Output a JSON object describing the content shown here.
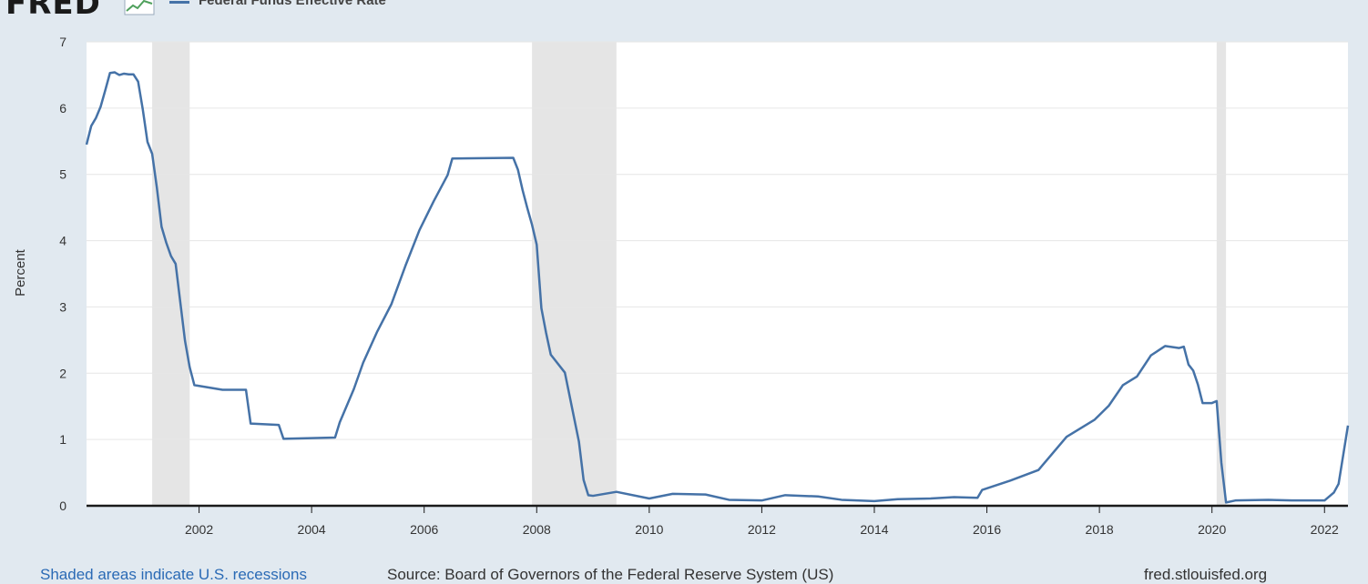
{
  "header": {
    "logo_text": "FRED",
    "logo_icon": "line-chart-icon",
    "legend_label": "Federal Funds Effective Rate"
  },
  "footer": {
    "recession_note": "Shaded areas indicate U.S. recessions",
    "source_note": "Source: Board of Governors of the Federal Reserve System (US)",
    "site_note": "fred.stlouisfed.org"
  },
  "colors": {
    "line": "#4572a7",
    "recession": "#e5e5e5",
    "plot_bg": "#ffffff",
    "page_bg": "#e1e9f0",
    "grid": "#e6e6e6"
  },
  "chart_data": {
    "type": "line",
    "title": "",
    "xlabel": "",
    "ylabel": "Percent",
    "xlim": [
      "2000-01",
      "2022-06"
    ],
    "ylim": [
      0,
      7
    ],
    "yticks": [
      0,
      1,
      2,
      3,
      4,
      5,
      6,
      7
    ],
    "xticks": [
      "2002",
      "2004",
      "2006",
      "2008",
      "2010",
      "2012",
      "2014",
      "2016",
      "2018",
      "2020",
      "2022"
    ],
    "grid": true,
    "recessions": [
      [
        "2001-03",
        "2001-11"
      ],
      [
        "2007-12",
        "2009-06"
      ],
      [
        "2020-02",
        "2020-04"
      ]
    ],
    "series": [
      {
        "name": "Federal Funds Effective Rate",
        "x": [
          "2000-01",
          "2000-02",
          "2000-03",
          "2000-04",
          "2000-05",
          "2000-06",
          "2000-07",
          "2000-08",
          "2000-09",
          "2000-10",
          "2000-11",
          "2000-12",
          "2001-01",
          "2001-02",
          "2001-03",
          "2001-04",
          "2001-05",
          "2001-06",
          "2001-07",
          "2001-08",
          "2001-09",
          "2001-10",
          "2001-11",
          "2001-12",
          "2002-06",
          "2002-11",
          "2002-12",
          "2003-06",
          "2003-07",
          "2004-06",
          "2004-07",
          "2004-10",
          "2004-12",
          "2005-03",
          "2005-06",
          "2005-09",
          "2005-12",
          "2006-03",
          "2006-06",
          "2006-07",
          "2007-08",
          "2007-09",
          "2007-10",
          "2007-11",
          "2007-12",
          "2008-01",
          "2008-02",
          "2008-03",
          "2008-04",
          "2008-07",
          "2008-10",
          "2008-11",
          "2008-12",
          "2009-01",
          "2009-06",
          "2010-01",
          "2010-06",
          "2011-01",
          "2011-06",
          "2012-01",
          "2012-06",
          "2013-01",
          "2013-06",
          "2014-01",
          "2014-06",
          "2015-01",
          "2015-06",
          "2015-11",
          "2015-12",
          "2016-06",
          "2016-12",
          "2017-03",
          "2017-06",
          "2017-12",
          "2018-03",
          "2018-06",
          "2018-09",
          "2018-12",
          "2019-03",
          "2019-06",
          "2019-07",
          "2019-08",
          "2019-09",
          "2019-10",
          "2019-11",
          "2020-01",
          "2020-02",
          "2020-03",
          "2020-04",
          "2020-06",
          "2021-01",
          "2021-06",
          "2022-01",
          "2022-03",
          "2022-04",
          "2022-05",
          "2022-06"
        ],
        "values": [
          5.45,
          5.73,
          5.85,
          6.02,
          6.27,
          6.53,
          6.54,
          6.5,
          6.52,
          6.51,
          6.51,
          6.4,
          5.98,
          5.49,
          5.31,
          4.8,
          4.21,
          3.97,
          3.77,
          3.65,
          3.07,
          2.49,
          2.09,
          1.82,
          1.75,
          1.75,
          1.24,
          1.22,
          1.01,
          1.03,
          1.26,
          1.76,
          2.16,
          2.63,
          3.04,
          3.62,
          4.16,
          4.59,
          4.99,
          5.24,
          5.25,
          5.07,
          4.76,
          4.49,
          4.24,
          3.94,
          2.98,
          2.61,
          2.28,
          2.01,
          0.97,
          0.39,
          0.16,
          0.15,
          0.21,
          0.11,
          0.18,
          0.17,
          0.09,
          0.08,
          0.16,
          0.14,
          0.09,
          0.07,
          0.1,
          0.11,
          0.13,
          0.12,
          0.24,
          0.38,
          0.54,
          0.79,
          1.04,
          1.3,
          1.51,
          1.82,
          1.95,
          2.27,
          2.41,
          2.38,
          2.4,
          2.13,
          2.04,
          1.83,
          1.55,
          1.55,
          1.58,
          0.65,
          0.05,
          0.08,
          0.09,
          0.08,
          0.08,
          0.2,
          0.33,
          0.77,
          1.21
        ]
      }
    ]
  }
}
